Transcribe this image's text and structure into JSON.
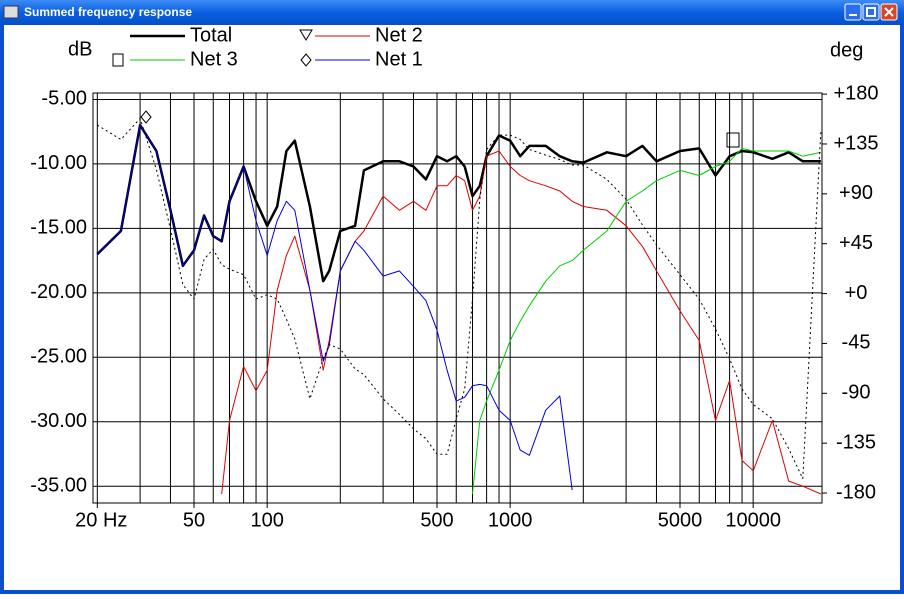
{
  "window_title": "Summed frequency response",
  "chart_data": {
    "type": "line",
    "y_label": "dB",
    "y2_label": "deg",
    "x_log": true,
    "grid": true,
    "x": [
      20,
      25,
      30,
      35,
      40,
      45,
      50,
      55,
      60,
      65,
      70,
      80,
      90,
      100,
      110,
      120,
      130,
      150,
      170,
      180,
      200,
      230,
      250,
      300,
      350,
      400,
      450,
      500,
      550,
      600,
      650,
      700,
      750,
      800,
      900,
      1000,
      1100,
      1200,
      1400,
      1600,
      1800,
      2000,
      2500,
      3000,
      3500,
      4000,
      5000,
      6000,
      7000,
      8000,
      9000,
      10000,
      12000,
      14000,
      16000,
      19000
    ],
    "xlim": [
      19.2,
      19200
    ],
    "xticks": [
      {
        "value": 20,
        "label": "20 Hz"
      },
      50,
      100,
      500,
      1000,
      5000,
      10000
    ],
    "xgrid": [
      20,
      30,
      40,
      50,
      60,
      70,
      80,
      90,
      100,
      200,
      300,
      400,
      500,
      600,
      700,
      800,
      900,
      1000,
      2000,
      3000,
      4000,
      5000,
      6000,
      7000,
      8000,
      9000,
      10000
    ],
    "ylim": [
      -36.3,
      -4.5
    ],
    "yticks": [
      {
        "value": -5,
        "label": "-5.00"
      },
      {
        "value": -10,
        "label": "-10.00"
      },
      {
        "value": -15,
        "label": "-15.00"
      },
      {
        "value": -20,
        "label": "-20.00"
      },
      {
        "value": -25,
        "label": "-25.00"
      },
      {
        "value": -30,
        "label": "-30.00"
      },
      {
        "value": -35,
        "label": "-35.00"
      }
    ],
    "y2lim": [
      -189,
      181
    ],
    "y2ticks": [
      {
        "value": 180,
        "label": "+180"
      },
      {
        "value": 135,
        "label": "+135"
      },
      {
        "value": 90,
        "label": "+90"
      },
      {
        "value": 45,
        "label": "+45"
      },
      {
        "value": 0,
        "label": "+0"
      },
      -45,
      -90,
      -135,
      -180
    ],
    "series": [
      {
        "name": "Total",
        "color": "#000000",
        "line_width": 2.5,
        "values": [
          -17.0,
          -15.2,
          -7.0,
          -9.0,
          -13.6,
          -17.9,
          -16.7,
          -14.0,
          -15.6,
          -16.0,
          -12.9,
          -10.2,
          -12.9,
          -14.8,
          -13.3,
          -9.0,
          -8.2,
          -13.3,
          -19.1,
          -18.3,
          -15.2,
          -14.8,
          -10.5,
          -9.8,
          -9.8,
          -10.2,
          -11.2,
          -9.4,
          -9.8,
          -9.4,
          -10.2,
          -12.5,
          -11.7,
          -9.4,
          -7.8,
          -8.2,
          -9.4,
          -8.6,
          -8.6,
          -9.4,
          -9.8,
          -9.9,
          -9.1,
          -9.4,
          -8.6,
          -9.8,
          -9.0,
          -8.8,
          -10.9,
          -9.4,
          -9.0,
          -9.1,
          -9.6,
          -9.1,
          -9.8,
          -9.8
        ]
      },
      {
        "name": "Net 2",
        "color": "#e00000",
        "line_width": 1,
        "values": [
          null,
          null,
          null,
          null,
          null,
          null,
          null,
          null,
          null,
          -35.6,
          -29.9,
          -25.7,
          -27.6,
          -26.0,
          -19.8,
          -17.1,
          -15.6,
          -19.8,
          -26.0,
          -23.7,
          -18.3,
          -16.0,
          -15.2,
          -12.5,
          -13.6,
          -12.9,
          -13.6,
          -11.7,
          -11.7,
          -10.9,
          -11.3,
          -13.6,
          -12.5,
          -9.4,
          -9.0,
          -10.2,
          -10.9,
          -11.3,
          -11.7,
          -12.1,
          -12.9,
          -13.3,
          -13.6,
          -14.8,
          -16.4,
          -18.3,
          -21.4,
          -23.7,
          -29.9,
          -26.8,
          -33.0,
          -33.8,
          -29.9,
          -34.6,
          -35.0,
          -35.6
        ]
      },
      {
        "name": "Net 3",
        "color": "#00cc00",
        "line_width": 1,
        "values": [
          null,
          null,
          null,
          null,
          null,
          null,
          null,
          null,
          null,
          null,
          null,
          null,
          null,
          null,
          null,
          null,
          null,
          null,
          null,
          null,
          null,
          null,
          null,
          null,
          null,
          null,
          null,
          null,
          null,
          null,
          null,
          -35.6,
          -29.9,
          -28.4,
          -26.0,
          -23.7,
          -22.2,
          -21.0,
          -19.1,
          -17.9,
          -17.5,
          -16.7,
          -15.2,
          -12.9,
          -12.1,
          -11.3,
          -10.5,
          -10.9,
          -10.2,
          -9.8,
          -8.8,
          -9.0,
          -9.0,
          -9.0,
          -9.4,
          -9.1
        ]
      },
      {
        "name": "Net 1",
        "color": "#0000dd",
        "line_width": 1,
        "values": [
          -17.0,
          -15.2,
          -7.0,
          -9.0,
          -13.6,
          -17.9,
          -16.7,
          -14.0,
          -15.6,
          -16.0,
          -12.9,
          -10.2,
          -14.4,
          -17.1,
          -14.4,
          -12.9,
          -13.6,
          -19.8,
          -25.3,
          -24.1,
          -18.3,
          -16.0,
          -16.7,
          -18.7,
          -18.3,
          -19.5,
          -20.6,
          -22.9,
          -26.0,
          -28.4,
          -28.1,
          -27.2,
          -27.1,
          -27.2,
          -29.1,
          -29.9,
          -32.2,
          -32.6,
          -29.1,
          -28.0,
          -35.3,
          null,
          null,
          null,
          null,
          null,
          null,
          null,
          null,
          null,
          null,
          null,
          null,
          null,
          null,
          null
        ]
      },
      {
        "color": "#000000",
        "line_width": 1,
        "line_style": "dotted",
        "axis": "y2",
        "values": [
          152,
          139,
          158,
          112,
          58,
          8,
          -5,
          31,
          40,
          26,
          22,
          17,
          -5,
          -1,
          -5,
          -23,
          -41,
          -95,
          -59,
          -46,
          -50,
          -68,
          -73,
          -95,
          -109,
          -122,
          -131,
          -145,
          -145,
          -113,
          -86,
          -5,
          85,
          130,
          143,
          143,
          139,
          130,
          125,
          121,
          116,
          116,
          103,
          85,
          62,
          44,
          17,
          -5,
          -32,
          -59,
          -86,
          -100,
          -113,
          -140,
          -167,
          148
        ]
      }
    ]
  }
}
